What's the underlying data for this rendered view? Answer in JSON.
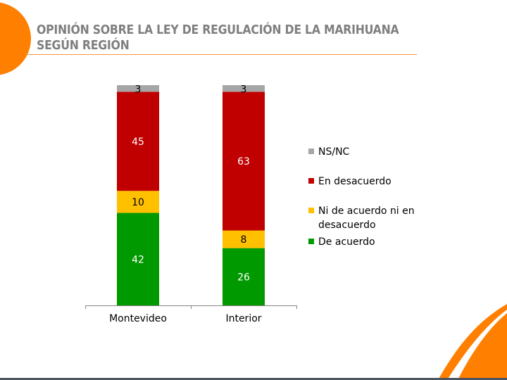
{
  "slide": {
    "title_line1": "OPINIÓN SOBRE LA LEY DE REGULACIÓN DE LA MARIHUANA",
    "title_line2": "SEGÚN REGIÓN",
    "accent_color": "#ff7f00"
  },
  "chart_data": {
    "type": "bar",
    "stacked": true,
    "title": "OPINIÓN SOBRE LA LEY DE REGULACIÓN DE LA MARIHUANA SEGÚN REGIÓN",
    "categories": [
      "Montevideo",
      "Interior"
    ],
    "series": [
      {
        "name": "De acuerdo",
        "color": "#009900",
        "values": [
          42,
          26
        ]
      },
      {
        "name": "Ni de acuerdo ni en desacuerdo",
        "color": "#ffc000",
        "values": [
          10,
          8
        ]
      },
      {
        "name": "En desacuerdo",
        "color": "#c00000",
        "values": [
          45,
          63
        ]
      },
      {
        "name": "NS/NC",
        "color": "#a6a6a6",
        "values": [
          3,
          3
        ]
      }
    ],
    "ylim": [
      0,
      100
    ],
    "xlabel": "",
    "ylabel": "",
    "grid": false,
    "legend_position": "right"
  }
}
